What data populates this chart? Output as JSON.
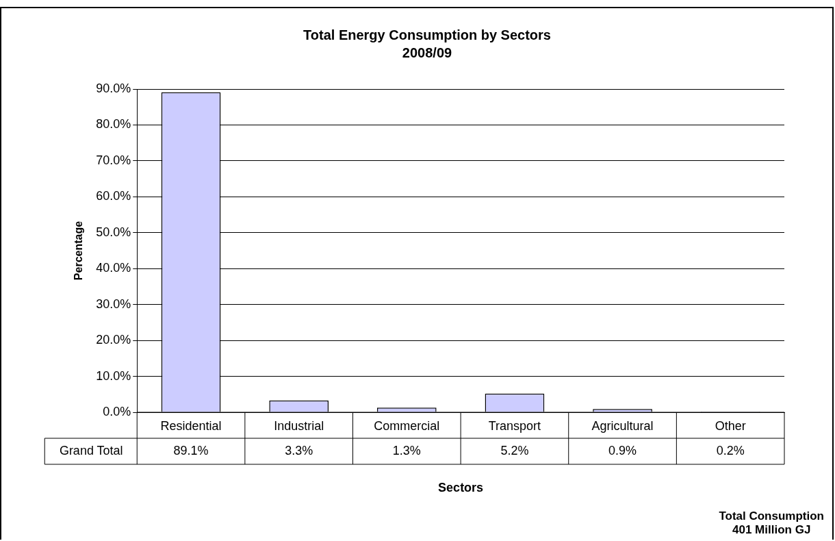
{
  "chart_data": {
    "type": "bar",
    "title": "Total Energy Consumption by Sectors",
    "subtitle": "2008/09",
    "xlabel": "Sectors",
    "ylabel": "Percentage",
    "categories": [
      "Residential",
      "Industrial",
      "Commercial",
      "Transport",
      "Agricultural",
      "Other"
    ],
    "series": [
      {
        "name": "Grand Total",
        "color": "#ccccff",
        "values": [
          89.1,
          3.3,
          1.3,
          5.2,
          0.9,
          0.2
        ],
        "value_labels": [
          "89.1%",
          "3.3%",
          "1.3%",
          "5.2%",
          "0.9%",
          "0.2%"
        ]
      }
    ],
    "ylim": [
      0,
      90
    ],
    "yticks": [
      {
        "value": 0,
        "label": "0.0%"
      },
      {
        "value": 10,
        "label": "10.0%"
      },
      {
        "value": 20,
        "label": "20.0%"
      },
      {
        "value": 30,
        "label": "30.0%"
      },
      {
        "value": 40,
        "label": "40.0%"
      },
      {
        "value": 50,
        "label": "50.0%"
      },
      {
        "value": 60,
        "label": "60.0%"
      },
      {
        "value": 70,
        "label": "70.0%"
      },
      {
        "value": 80,
        "label": "80.0%"
      },
      {
        "value": 90,
        "label": "90.0%"
      }
    ],
    "grid": "y",
    "legend": false,
    "annotations": [
      "Total Consumption\n401 Million GJ"
    ]
  }
}
